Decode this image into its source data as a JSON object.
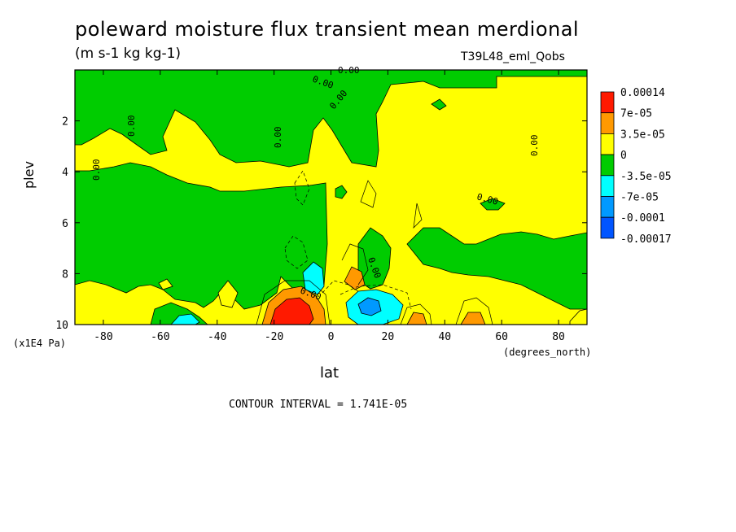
{
  "chart_data": {
    "type": "heatmap",
    "title": "poleward moisture flux transient mean merdional",
    "units": "(m s-1 kg kg-1)",
    "run_label": "T39L48_eml_Qobs",
    "xlabel": "lat",
    "ylabel": "plev",
    "x_unit_label": "(degrees_north)",
    "y_unit_label": "(x1E4 Pa)",
    "xlim": [
      -90,
      90
    ],
    "ylim": [
      10,
      0
    ],
    "x_ticks": [
      "-80",
      "-60",
      "-40",
      "-20",
      "0",
      "20",
      "40",
      "60",
      "80"
    ],
    "x_tick_values": [
      -80,
      -60,
      -40,
      -20,
      0,
      20,
      40,
      60,
      80
    ],
    "y_ticks": [
      "2",
      "4",
      "6",
      "8",
      "10"
    ],
    "y_tick_values": [
      2,
      4,
      6,
      8,
      10
    ],
    "contour_interval_text": "CONTOUR INTERVAL = 1.741E-05",
    "contour_label": "0.00",
    "colorbar": {
      "labels": [
        "0.00014",
        "7e-05",
        "3.5e-05",
        "0",
        "-3.5e-05",
        "-7e-05",
        "-0.0001",
        "-0.00017"
      ],
      "colors": [
        "#ff1a00",
        "#ff9900",
        "#ffff00",
        "#00cc00",
        "#00ffff",
        "#0099ff",
        "#0055ff"
      ]
    },
    "features": [
      {
        "name": "positive maximum",
        "lat": -15,
        "plev": 9.3,
        "value": 0.00014
      },
      {
        "name": "negative minimum",
        "lat": 13,
        "plev": 9.2,
        "value": -0.0001
      },
      {
        "name": "orange lobe",
        "lat": 8,
        "plev": 8.2,
        "value": 3.5e-05
      },
      {
        "name": "orange lobe",
        "lat": 30,
        "plev": 9.7,
        "value": 3.5e-05
      },
      {
        "name": "orange lobe",
        "lat": 50,
        "plev": 9.7,
        "value": 3.5e-05
      },
      {
        "name": "cyan lobe",
        "lat": -50,
        "plev": 9.8,
        "value": -3.5e-05
      },
      {
        "name": "cyan lobe",
        "lat": -7,
        "plev": 8.7,
        "value": -3.5e-05
      }
    ]
  }
}
